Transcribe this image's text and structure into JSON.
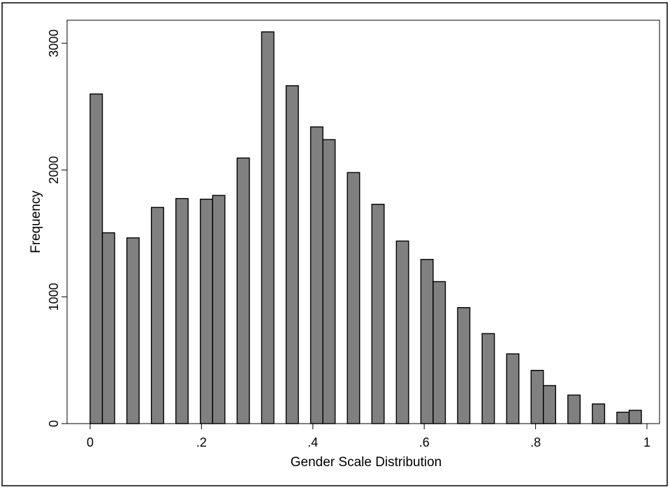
{
  "chart_data": {
    "type": "bar",
    "title": "",
    "xlabel": "Gender Scale Distribution",
    "ylabel": "Frequency",
    "xlim": [
      0,
      1
    ],
    "ylim": [
      0,
      3100
    ],
    "x_ticks": [
      {
        "value": 0,
        "label": "0"
      },
      {
        "value": 0.2,
        "label": ".2"
      },
      {
        "value": 0.4,
        "label": ".4"
      },
      {
        "value": 0.6,
        "label": ".6"
      },
      {
        "value": 0.8,
        "label": ".8"
      },
      {
        "value": 1,
        "label": "1"
      }
    ],
    "y_ticks": [
      {
        "value": 0,
        "label": "0"
      },
      {
        "value": 1000,
        "label": "1000"
      },
      {
        "value": 2000,
        "label": "2000"
      },
      {
        "value": 3000,
        "label": "3000"
      }
    ],
    "bar_width": 0.022,
    "grid": false,
    "legend": "none",
    "bar_color": "#808080",
    "bar_edge_color": "#000000",
    "bars": [
      {
        "x": 0.0,
        "value": 2600
      },
      {
        "x": 0.022,
        "value": 1505
      },
      {
        "x": 0.066,
        "value": 1465
      },
      {
        "x": 0.11,
        "value": 1705
      },
      {
        "x": 0.154,
        "value": 1775
      },
      {
        "x": 0.198,
        "value": 1770
      },
      {
        "x": 0.22,
        "value": 1800
      },
      {
        "x": 0.264,
        "value": 2095
      },
      {
        "x": 0.308,
        "value": 3090
      },
      {
        "x": 0.352,
        "value": 2665
      },
      {
        "x": 0.396,
        "value": 2340
      },
      {
        "x": 0.418,
        "value": 2240
      },
      {
        "x": 0.462,
        "value": 1980
      },
      {
        "x": 0.506,
        "value": 1730
      },
      {
        "x": 0.55,
        "value": 1440
      },
      {
        "x": 0.594,
        "value": 1295
      },
      {
        "x": 0.616,
        "value": 1120
      },
      {
        "x": 0.66,
        "value": 915
      },
      {
        "x": 0.704,
        "value": 710
      },
      {
        "x": 0.748,
        "value": 550
      },
      {
        "x": 0.792,
        "value": 420
      },
      {
        "x": 0.814,
        "value": 300
      },
      {
        "x": 0.858,
        "value": 225
      },
      {
        "x": 0.902,
        "value": 155
      },
      {
        "x": 0.946,
        "value": 90
      },
      {
        "x": 0.968,
        "value": 105
      }
    ]
  }
}
